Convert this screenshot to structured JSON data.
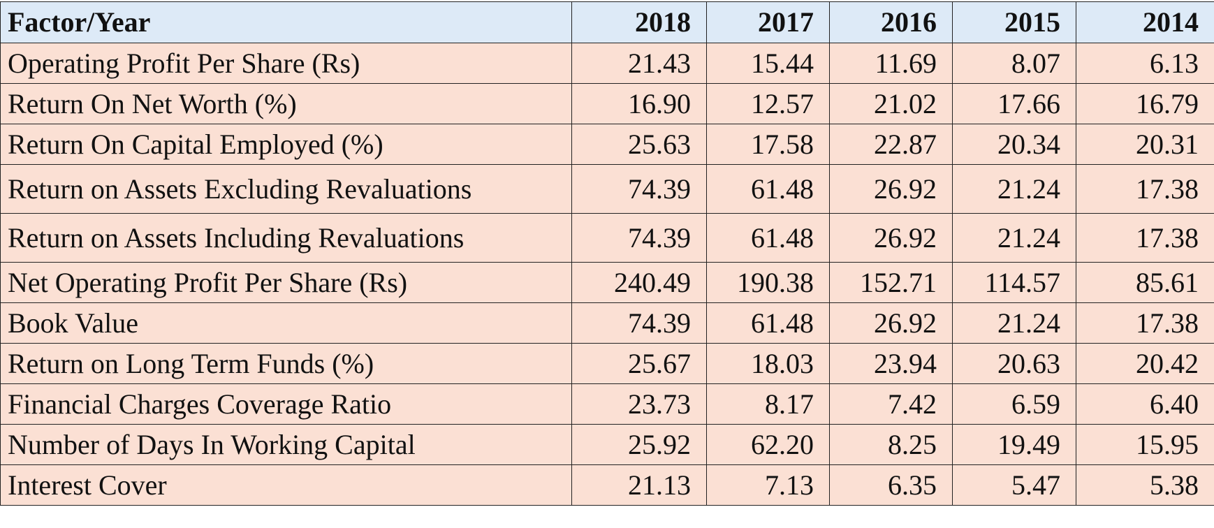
{
  "table": {
    "header": [
      "Factor/Year",
      "2018",
      "2017",
      "2016",
      "2015",
      "2014"
    ],
    "rows": [
      [
        "Operating Profit Per Share (Rs)",
        "21.43",
        "15.44",
        "11.69",
        "8.07",
        "6.13"
      ],
      [
        "Return On Net Worth (%)",
        "16.90",
        "12.57",
        "21.02",
        "17.66",
        "16.79"
      ],
      [
        "Return On Capital Employed (%)",
        "25.63",
        "17.58",
        "22.87",
        "20.34",
        "20.31"
      ],
      [
        "Return on Assets Excluding Revaluations",
        "74.39",
        "61.48",
        "26.92",
        "21.24",
        "17.38"
      ],
      [
        "Return on Assets Including Revaluations",
        "74.39",
        "61.48",
        "26.92",
        "21.24",
        "17.38"
      ],
      [
        "Net Operating Profit Per Share (Rs)",
        "240.49",
        "190.38",
        "152.71",
        "114.57",
        "85.61"
      ],
      [
        "Book Value",
        "74.39",
        "61.48",
        "26.92",
        "21.24",
        "17.38"
      ],
      [
        "Return on Long Term Funds (%)",
        "25.67",
        "18.03",
        "23.94",
        "20.63",
        "20.42"
      ],
      [
        "Financial Charges Coverage Ratio",
        "23.73",
        "8.17",
        "7.42",
        "6.59",
        "6.40"
      ],
      [
        "Number of Days In Working Capital",
        "25.92",
        "62.20",
        "8.25",
        "19.49",
        "15.95"
      ],
      [
        "Interest Cover",
        "21.13",
        "7.13",
        "6.35",
        "5.47",
        "5.38"
      ]
    ]
  }
}
